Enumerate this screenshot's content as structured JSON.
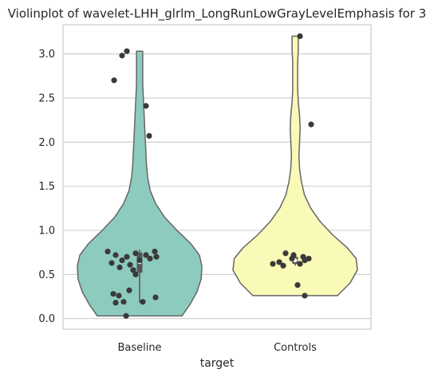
{
  "chart_data": {
    "type": "violin",
    "title": "Violinplot of wavelet-LHH_glrlm_LongRunLowGrayLevelEmphasis for 3",
    "xlabel": "target",
    "ylabel": "",
    "categories": [
      "Baseline",
      "Controls"
    ],
    "ylim": [
      -0.12,
      3.33
    ],
    "yticks": [
      0.0,
      0.5,
      1.0,
      1.5,
      2.0,
      2.5,
      3.0
    ],
    "ytick_labels": [
      "0.0",
      "0.5",
      "1.0",
      "1.5",
      "2.0",
      "2.5",
      "3.0"
    ],
    "grid": true,
    "violin_colors": [
      "#8dcbbf",
      "#f9f9b8"
    ],
    "point_color": "#3a3a3a",
    "series": [
      {
        "category": "Baseline",
        "range": [
          0.03,
          3.03
        ],
        "box": {
          "q1": 0.52,
          "q3": 0.75,
          "median": 0.64,
          "whisker_low": 0.18,
          "whisker_high": 0.78
        },
        "density": [
          [
            0.03,
            0.68
          ],
          [
            0.15,
            0.8
          ],
          [
            0.3,
            0.92
          ],
          [
            0.45,
            0.99
          ],
          [
            0.6,
            1.0
          ],
          [
            0.72,
            0.96
          ],
          [
            0.85,
            0.82
          ],
          [
            1.0,
            0.6
          ],
          [
            1.15,
            0.4
          ],
          [
            1.3,
            0.26
          ],
          [
            1.45,
            0.17
          ],
          [
            1.6,
            0.13
          ],
          [
            1.75,
            0.11
          ],
          [
            1.9,
            0.1
          ],
          [
            2.05,
            0.09
          ],
          [
            2.2,
            0.08
          ],
          [
            2.35,
            0.07
          ],
          [
            2.5,
            0.06
          ],
          [
            2.65,
            0.05
          ],
          [
            2.8,
            0.05
          ],
          [
            2.95,
            0.05
          ],
          [
            3.03,
            0.05
          ]
        ],
        "points": [
          [
            -0.17,
            0.03
          ],
          [
            -0.3,
            0.18
          ],
          [
            -0.2,
            0.19
          ],
          [
            0.04,
            0.19
          ],
          [
            0.2,
            0.24
          ],
          [
            -0.33,
            0.28
          ],
          [
            -0.26,
            0.26
          ],
          [
            -0.13,
            0.32
          ],
          [
            -0.4,
            0.76
          ],
          [
            -0.3,
            0.72
          ],
          [
            -0.16,
            0.7
          ],
          [
            -0.05,
            0.74
          ],
          [
            0.08,
            0.72
          ],
          [
            0.19,
            0.76
          ],
          [
            -0.22,
            0.66
          ],
          [
            -0.35,
            0.63
          ],
          [
            -0.12,
            0.61
          ],
          [
            0.0,
            0.66
          ],
          [
            0.13,
            0.68
          ],
          [
            0.21,
            0.7
          ],
          [
            -0.25,
            0.58
          ],
          [
            -0.08,
            0.55
          ],
          [
            -0.05,
            0.5
          ],
          [
            0.08,
            2.41
          ],
          [
            0.12,
            2.07
          ],
          [
            -0.22,
            2.98
          ],
          [
            -0.16,
            3.03
          ],
          [
            -0.32,
            2.7
          ]
        ]
      },
      {
        "category": "Controls",
        "range": [
          0.26,
          3.2
        ],
        "box": {
          "q1": 0.62,
          "q3": 0.7,
          "median": 0.66,
          "whisker_low": 0.6,
          "whisker_high": 0.72
        },
        "density": [
          [
            0.26,
            0.68
          ],
          [
            0.4,
            0.88
          ],
          [
            0.55,
            1.0
          ],
          [
            0.68,
            0.98
          ],
          [
            0.8,
            0.84
          ],
          [
            0.95,
            0.6
          ],
          [
            1.1,
            0.4
          ],
          [
            1.25,
            0.25
          ],
          [
            1.4,
            0.15
          ],
          [
            1.55,
            0.1
          ],
          [
            1.7,
            0.07
          ],
          [
            1.85,
            0.06
          ],
          [
            2.0,
            0.07
          ],
          [
            2.15,
            0.08
          ],
          [
            2.3,
            0.07
          ],
          [
            2.45,
            0.05
          ],
          [
            2.6,
            0.04
          ],
          [
            2.75,
            0.04
          ],
          [
            2.9,
            0.04
          ],
          [
            3.05,
            0.05
          ],
          [
            3.2,
            0.05
          ]
        ],
        "points": [
          [
            -0.2,
            0.64
          ],
          [
            -0.12,
            0.74
          ],
          [
            -0.02,
            0.72
          ],
          [
            0.1,
            0.7
          ],
          [
            0.17,
            0.68
          ],
          [
            -0.28,
            0.62
          ],
          [
            -0.15,
            0.6
          ],
          [
            0.06,
            0.62
          ],
          [
            0.12,
            0.66
          ],
          [
            -0.04,
            0.68
          ],
          [
            0.03,
            0.38
          ],
          [
            0.12,
            0.26
          ],
          [
            0.06,
            3.2
          ],
          [
            0.2,
            2.2
          ]
        ]
      }
    ]
  }
}
